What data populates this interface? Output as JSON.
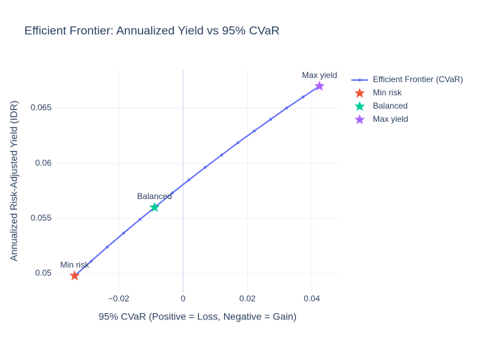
{
  "chart_data": {
    "type": "line",
    "title": "Efficient Frontier: Annualized Yield vs 95% CVaR",
    "x_label": "95% CVaR (Positive = Loss, Negative = Gain)",
    "y_label": "Annualized Risk-Adjusted Yield (IDR)",
    "xlim": [
      -0.0396,
      0.0486
    ],
    "ylim": [
      0.0483,
      0.0685
    ],
    "xticks": [
      {
        "value": -0.02,
        "label": "−0.02"
      },
      0,
      0.02,
      0.04
    ],
    "yticks": [
      0.05,
      0.055,
      0.06,
      0.065
    ],
    "grid": true,
    "legend": "right",
    "series": [
      {
        "name": "Efficient Frontier (CVaR)",
        "color": "#636efa",
        "mode": "lines+markers",
        "x": [
          -0.0337,
          -0.0286,
          -0.0236,
          -0.0185,
          -0.0134,
          -0.0083,
          -0.0033,
          0.0018,
          0.0069,
          0.012,
          0.017,
          0.0221,
          0.0272,
          0.0322,
          0.0373,
          0.0424
        ],
        "values": [
          0.0498,
          0.05111,
          0.0524,
          0.05367,
          0.05491,
          0.05613,
          0.05732,
          0.05849,
          0.05964,
          0.06076,
          0.06186,
          0.06293,
          0.06399,
          0.06502,
          0.06602,
          0.067
        ]
      },
      {
        "name": "Min risk",
        "color": "#EF553B",
        "mode": "markers+text",
        "x": [
          -0.0337
        ],
        "values": [
          0.0498
        ]
      },
      {
        "name": "Balanced",
        "color": "#00cc96",
        "mode": "markers+text",
        "x": [
          -0.00886
        ],
        "values": [
          0.056
        ]
      },
      {
        "name": "Max yield",
        "color": "#ab63fa",
        "mode": "markers+text",
        "x": [
          0.0424
        ],
        "values": [
          0.067
        ]
      }
    ]
  }
}
